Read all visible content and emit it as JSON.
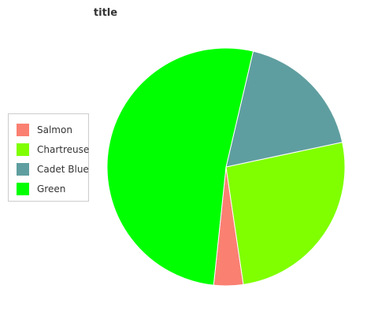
{
  "chart_data": {
    "type": "pie",
    "title": "title",
    "legend_position": "left",
    "slices": [
      {
        "label": "Salmon",
        "value": 4,
        "color": "#fa8072"
      },
      {
        "label": "Chartreuse",
        "value": 26,
        "color": "#7fff00"
      },
      {
        "label": "Cadet Blue",
        "value": 18,
        "color": "#5f9ea0"
      },
      {
        "label": "Green",
        "value": 52,
        "color": "#00ff00"
      }
    ]
  }
}
